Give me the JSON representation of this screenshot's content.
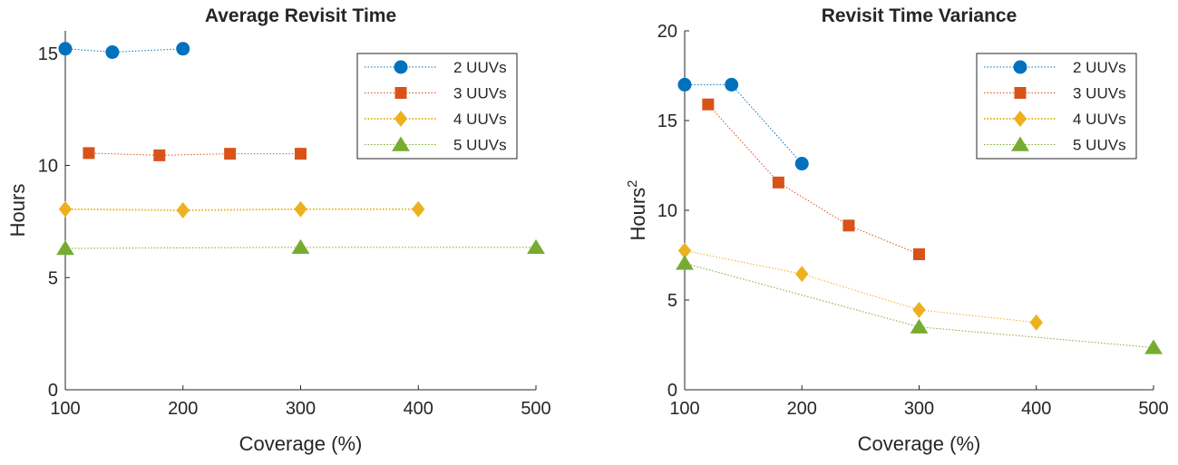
{
  "chart_data": [
    {
      "type": "line",
      "title": "Average Revisit Time",
      "xlabel": "Coverage (%)",
      "ylabel": "Hours",
      "ylabel_superscript": "",
      "xlim": [
        100,
        500
      ],
      "ylim": [
        0,
        16
      ],
      "xticks": [
        100,
        200,
        300,
        400,
        500
      ],
      "yticks": [
        0,
        5,
        10,
        15
      ],
      "legend_position": "top-right",
      "series": [
        {
          "name": "2 UUVs",
          "marker": "circle",
          "color": "#0072BD",
          "x": [
            100,
            140,
            200
          ],
          "y": [
            15.2,
            15.05,
            15.2
          ]
        },
        {
          "name": "3 UUVs",
          "marker": "square",
          "color": "#D95319",
          "x": [
            120,
            180,
            240,
            300
          ],
          "y": [
            10.55,
            10.45,
            10.52,
            10.52
          ]
        },
        {
          "name": "4 UUVs",
          "marker": "diamond",
          "color": "#EDB120",
          "x": [
            100,
            200,
            300,
            400
          ],
          "y": [
            8.05,
            8.0,
            8.05,
            8.05
          ]
        },
        {
          "name": "5 UUVs",
          "marker": "triangle",
          "color": "#77AC30",
          "x": [
            100,
            300,
            500
          ],
          "y": [
            6.3,
            6.35,
            6.35
          ]
        }
      ]
    },
    {
      "type": "line",
      "title": "Revisit Time Variance",
      "xlabel": "Coverage (%)",
      "ylabel": "Hours",
      "ylabel_superscript": "2",
      "xlim": [
        100,
        500
      ],
      "ylim": [
        0,
        20
      ],
      "xticks": [
        100,
        200,
        300,
        400,
        500
      ],
      "yticks": [
        0,
        5,
        10,
        15,
        20
      ],
      "legend_position": "top-right",
      "series": [
        {
          "name": "2 UUVs",
          "marker": "circle",
          "color": "#0072BD",
          "x": [
            100,
            140,
            200
          ],
          "y": [
            17.0,
            17.0,
            12.6
          ]
        },
        {
          "name": "3 UUVs",
          "marker": "square",
          "color": "#D95319",
          "x": [
            120,
            180,
            240,
            300
          ],
          "y": [
            15.9,
            11.55,
            9.15,
            7.55
          ]
        },
        {
          "name": "4 UUVs",
          "marker": "diamond",
          "color": "#EDB120",
          "x": [
            100,
            200,
            300,
            400
          ],
          "y": [
            7.75,
            6.45,
            4.45,
            3.75
          ]
        },
        {
          "name": "5 UUVs",
          "marker": "triangle",
          "color": "#77AC30",
          "x": [
            100,
            300,
            500
          ],
          "y": [
            7.05,
            3.5,
            2.35
          ]
        }
      ]
    }
  ]
}
